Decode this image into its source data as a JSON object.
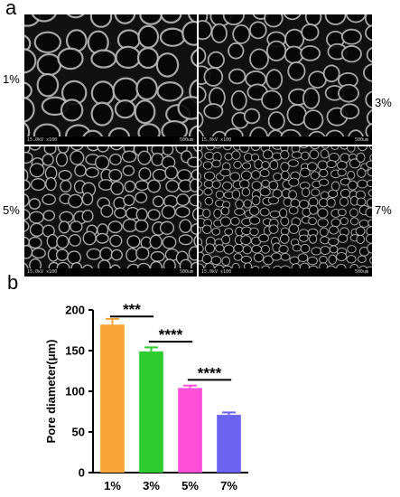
{
  "panels": {
    "a": "a",
    "b": "b"
  },
  "sem_images": [
    {
      "concentration": "1%",
      "meta": "15.0kV x100",
      "scale": "500um"
    },
    {
      "concentration": "3%",
      "meta": "15.0kV x100",
      "scale": "500um"
    },
    {
      "concentration": "5%",
      "meta": "15.0kV x100",
      "scale": "500um"
    },
    {
      "concentration": "7%",
      "meta": "15.0kV x100",
      "scale": "500um"
    }
  ],
  "chart_data": {
    "type": "bar",
    "categories": [
      "1%",
      "3%",
      "5%",
      "7%"
    ],
    "values": [
      182,
      149,
      104,
      71
    ],
    "errors": [
      7,
      5,
      3,
      3
    ],
    "colors": [
      "#f7a535",
      "#2ecc2e",
      "#ff4fd8",
      "#6b63f2"
    ],
    "ylabel": "Pore diameter(μm)",
    "ylim": [
      0,
      200
    ],
    "yticks": [
      0,
      50,
      100,
      150,
      200
    ],
    "grid": false,
    "significance": [
      {
        "from": 0,
        "to": 1,
        "label": "***"
      },
      {
        "from": 1,
        "to": 2,
        "label": "****"
      },
      {
        "from": 2,
        "to": 3,
        "label": "****"
      }
    ]
  }
}
